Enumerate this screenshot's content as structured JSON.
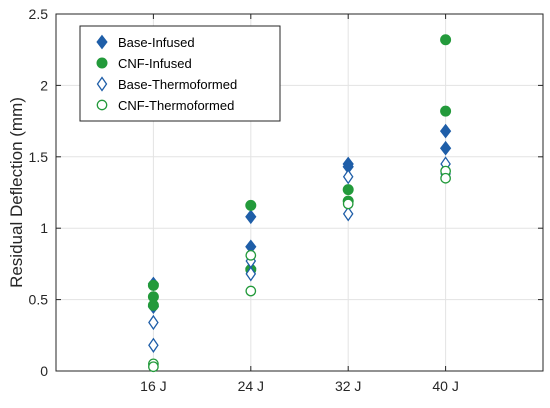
{
  "chart_data": {
    "type": "scatter",
    "title": "",
    "xlabel": "",
    "ylabel": "Residual Deflection (mm)",
    "categories": [
      "16 J",
      "24 J",
      "32 J",
      "40 J"
    ],
    "xlim": [
      0,
      5
    ],
    "ylim": [
      0,
      2.5
    ],
    "yticks": [
      "0",
      "0.5",
      "1",
      "1.5",
      "2",
      "2.5"
    ],
    "grid": true,
    "legend_position": "top-left",
    "series": [
      {
        "name": "Base-Infused",
        "marker": "diamond",
        "filled": true,
        "color": "#1f5ea8",
        "points": [
          {
            "x": "16 J",
            "y": 0.61
          },
          {
            "x": "16 J",
            "y": 0.45
          },
          {
            "x": "24 J",
            "y": 1.08
          },
          {
            "x": "24 J",
            "y": 0.87
          },
          {
            "x": "24 J",
            "y": 0.72
          },
          {
            "x": "32 J",
            "y": 1.45
          },
          {
            "x": "32 J",
            "y": 1.43
          },
          {
            "x": "40 J",
            "y": 1.68
          },
          {
            "x": "40 J",
            "y": 1.56
          }
        ]
      },
      {
        "name": "CNF-Infused",
        "marker": "circle",
        "filled": true,
        "color": "#239a3b",
        "points": [
          {
            "x": "16 J",
            "y": 0.6
          },
          {
            "x": "16 J",
            "y": 0.52
          },
          {
            "x": "16 J",
            "y": 0.46
          },
          {
            "x": "24 J",
            "y": 1.16
          },
          {
            "x": "24 J",
            "y": 0.71
          },
          {
            "x": "32 J",
            "y": 1.27
          },
          {
            "x": "32 J",
            "y": 1.19
          },
          {
            "x": "40 J",
            "y": 2.32
          },
          {
            "x": "40 J",
            "y": 1.82
          }
        ]
      },
      {
        "name": "Base-Thermoformed",
        "marker": "diamond",
        "filled": false,
        "color": "#1f5ea8",
        "points": [
          {
            "x": "16 J",
            "y": 0.34
          },
          {
            "x": "16 J",
            "y": 0.18
          },
          {
            "x": "24 J",
            "y": 0.77
          },
          {
            "x": "24 J",
            "y": 0.68
          },
          {
            "x": "32 J",
            "y": 1.36
          },
          {
            "x": "32 J",
            "y": 1.1
          },
          {
            "x": "40 J",
            "y": 1.45
          },
          {
            "x": "40 J",
            "y": 1.38
          }
        ]
      },
      {
        "name": "CNF-Thermoformed",
        "marker": "circle",
        "filled": false,
        "color": "#239a3b",
        "points": [
          {
            "x": "16 J",
            "y": 0.05
          },
          {
            "x": "16 J",
            "y": 0.03
          },
          {
            "x": "24 J",
            "y": 0.81
          },
          {
            "x": "24 J",
            "y": 0.56
          },
          {
            "x": "32 J",
            "y": 1.17
          },
          {
            "x": "40 J",
            "y": 1.4
          },
          {
            "x": "40 J",
            "y": 1.35
          }
        ]
      }
    ]
  }
}
